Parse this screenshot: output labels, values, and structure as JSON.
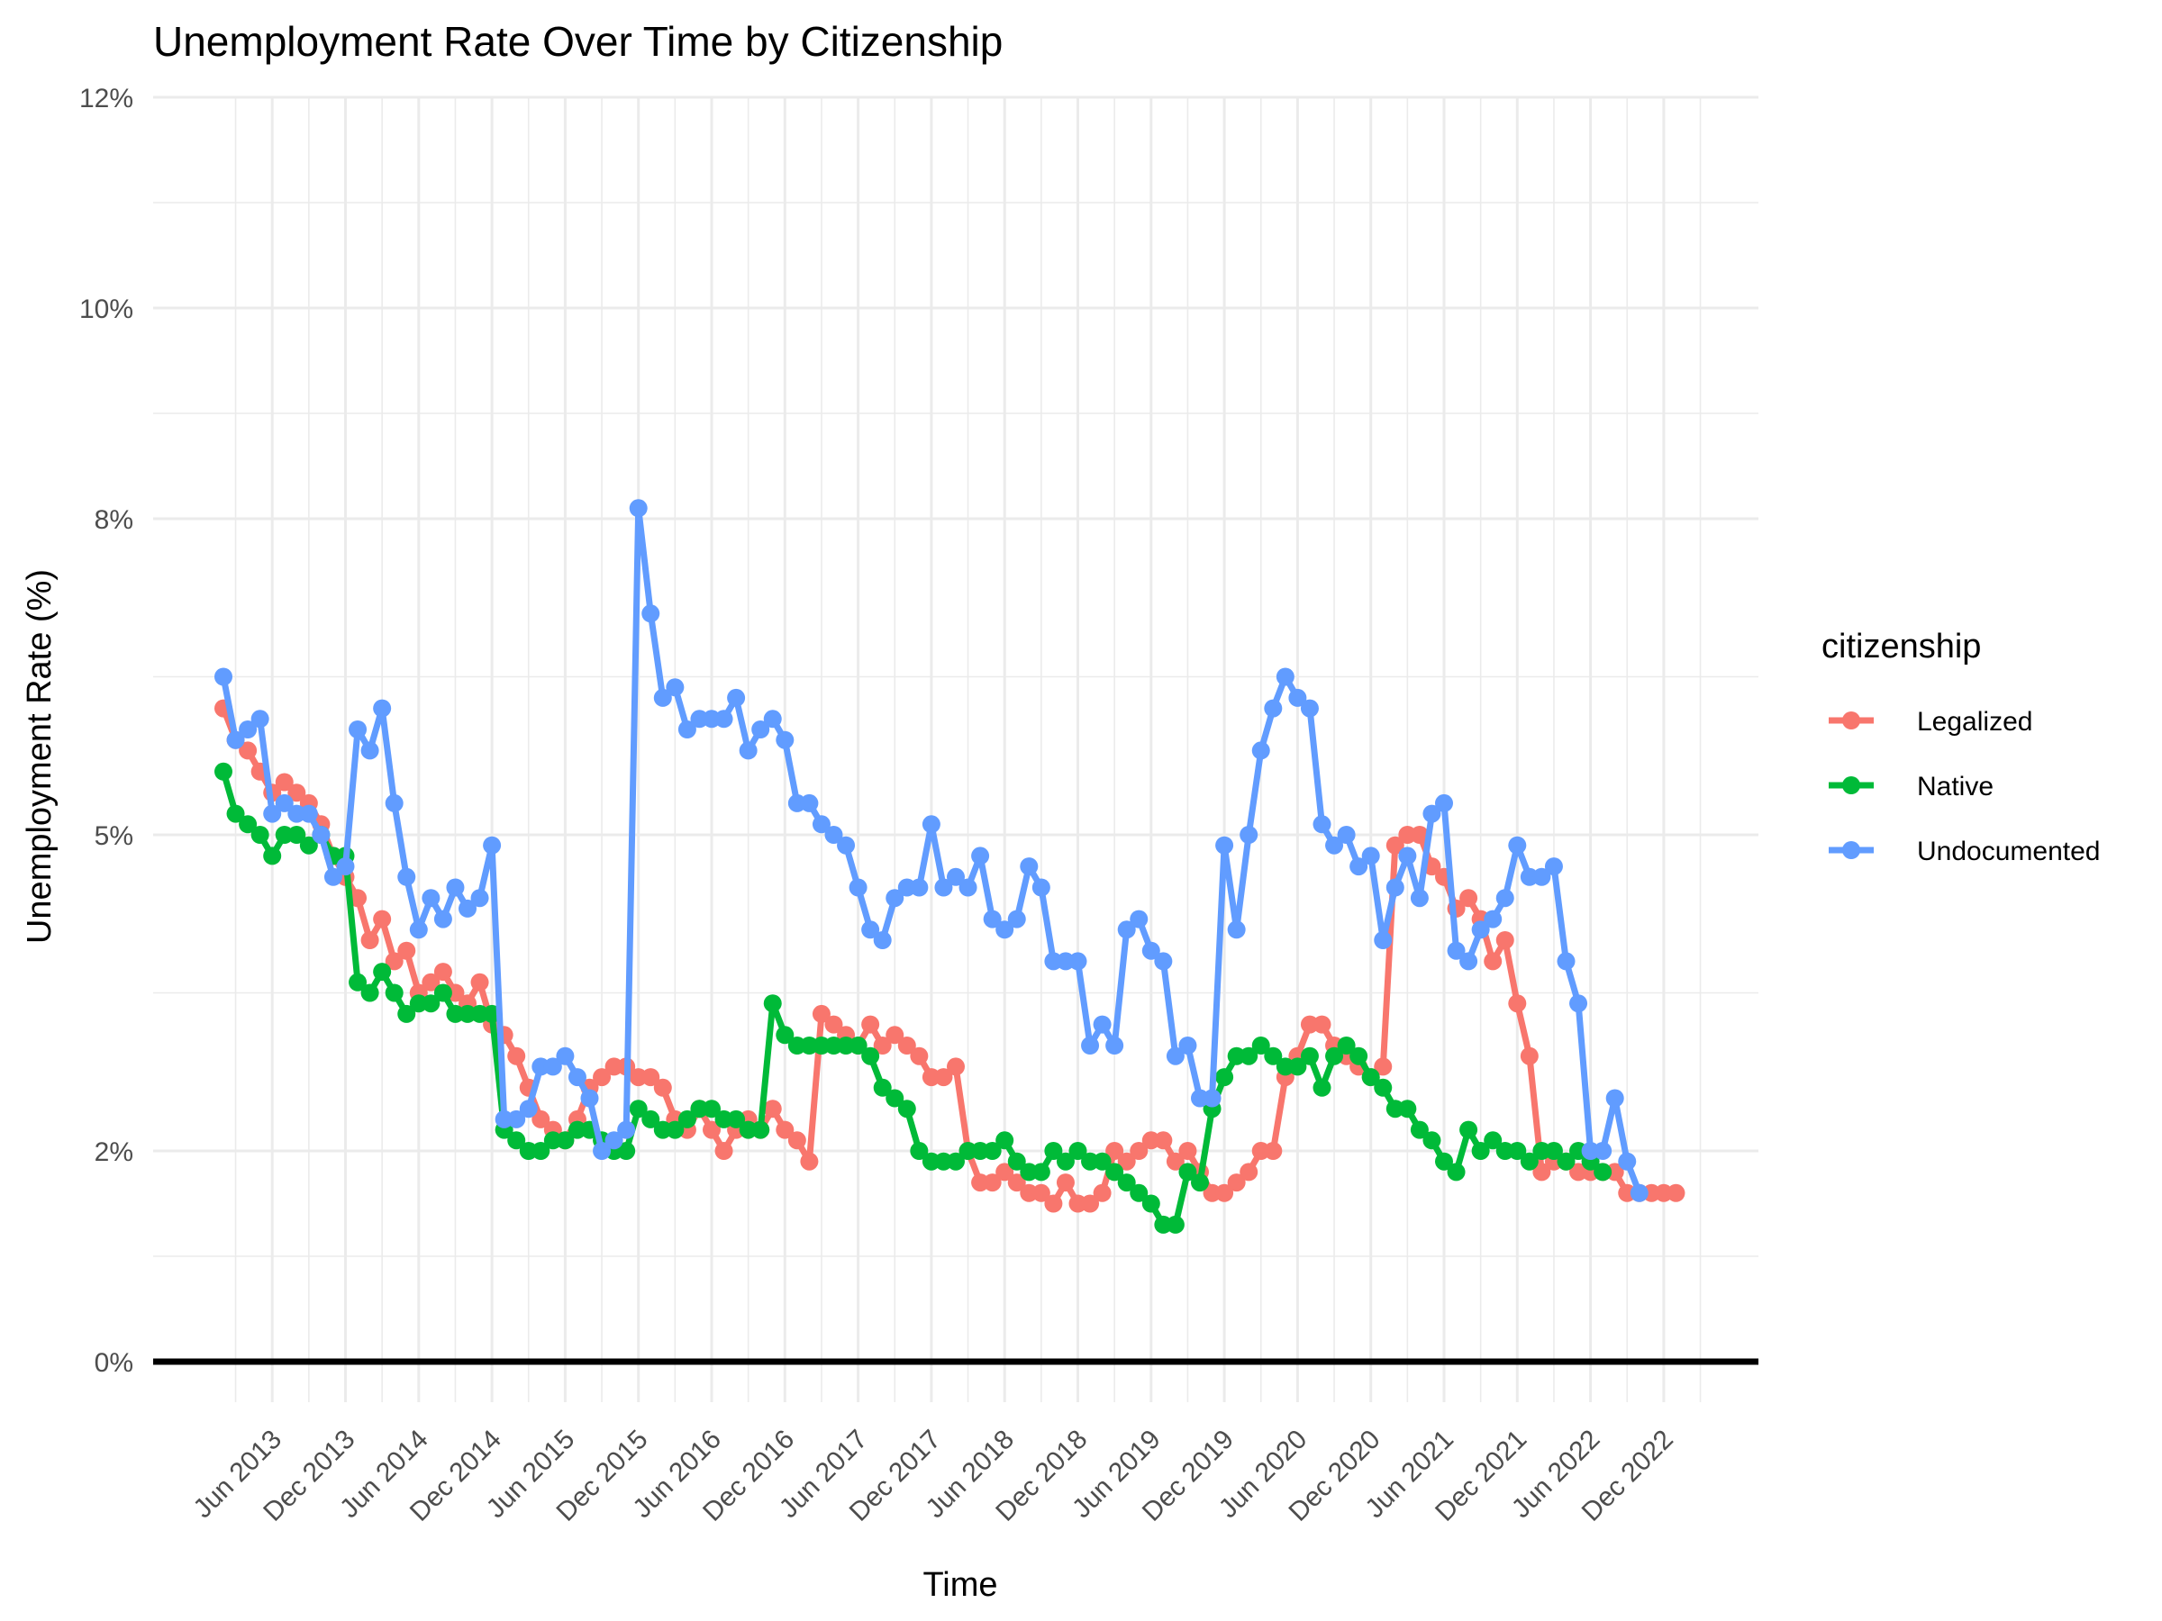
{
  "chart_data": {
    "type": "line",
    "title": "Unemployment Rate Over Time by Citizenship",
    "xlabel": "Time",
    "ylabel": "Unemployment Rate (%)",
    "ylim": [
      0,
      12
    ],
    "y_ticks": [
      "0%",
      "2%",
      "5%",
      "8%",
      "10%",
      "12%"
    ],
    "y_tick_values": [
      0,
      2.0,
      5.0,
      8.0,
      10.0,
      12.0
    ],
    "x_start": "Feb 2013",
    "x_ticks": [
      "Jun 2013",
      "Dec 2013",
      "Jun 2014",
      "Dec 2014",
      "Jun 2015",
      "Dec 2015",
      "Jun 2016",
      "Dec 2016",
      "Jun 2017",
      "Dec 2017",
      "Jun 2018",
      "Dec 2018",
      "Jun 2019",
      "Dec 2019",
      "Jun 2020",
      "Dec 2020",
      "Jun 2021",
      "Dec 2021",
      "Jun 2022",
      "Dec 2022"
    ],
    "grid": true,
    "zero_line": true,
    "legend": {
      "title": "citizenship",
      "position": "right"
    },
    "series": [
      {
        "name": "Legalized",
        "color": "#F8766D",
        "values": [
          6.2,
          5.9,
          5.8,
          5.6,
          5.4,
          5.5,
          5.4,
          5.3,
          5.1,
          4.8,
          4.6,
          4.4,
          4.0,
          4.2,
          3.8,
          3.9,
          3.5,
          3.6,
          3.7,
          3.5,
          3.4,
          3.6,
          3.2,
          3.1,
          2.9,
          2.6,
          2.3,
          2.2,
          2.1,
          2.3,
          2.6,
          2.7,
          2.8,
          2.8,
          2.7,
          2.7,
          2.6,
          2.3,
          2.2,
          2.4,
          2.2,
          2.0,
          2.2,
          2.3,
          2.2,
          2.4,
          2.2,
          2.1,
          1.9,
          3.3,
          3.2,
          3.1,
          3.0,
          3.2,
          3.0,
          3.1,
          3.0,
          2.9,
          2.7,
          2.7,
          2.8,
          2.0,
          1.7,
          1.7,
          1.8,
          1.7,
          1.6,
          1.6,
          1.5,
          1.7,
          1.5,
          1.5,
          1.6,
          2.0,
          1.9,
          2.0,
          2.1,
          2.1,
          1.9,
          2.0,
          1.8,
          1.6,
          1.6,
          1.7,
          1.8,
          2.0,
          2.0,
          2.7,
          2.9,
          3.2,
          3.2,
          3.0,
          2.9,
          2.8,
          2.7,
          2.8,
          4.9,
          5.0,
          5.0,
          4.7,
          4.6,
          4.3,
          4.4,
          4.2,
          3.8,
          4.0,
          3.4,
          2.9,
          1.8,
          1.9,
          1.9,
          1.8,
          1.8,
          1.8,
          1.8,
          1.6,
          1.6,
          1.6,
          1.6,
          1.6
        ]
      },
      {
        "name": "Native",
        "color": "#00BA38",
        "values": [
          5.6,
          5.2,
          5.1,
          5.0,
          4.8,
          5.0,
          5.0,
          4.9,
          5.0,
          4.8,
          4.8,
          3.6,
          3.5,
          3.7,
          3.5,
          3.3,
          3.4,
          3.4,
          3.5,
          3.3,
          3.3,
          3.3,
          3.3,
          2.2,
          2.1,
          2.0,
          2.0,
          2.1,
          2.1,
          2.2,
          2.2,
          2.1,
          2.0,
          2.0,
          2.4,
          2.3,
          2.2,
          2.2,
          2.3,
          2.4,
          2.4,
          2.3,
          2.3,
          2.2,
          2.2,
          3.4,
          3.1,
          3.0,
          3.0,
          3.0,
          3.0,
          3.0,
          3.0,
          2.9,
          2.6,
          2.5,
          2.4,
          2.0,
          1.9,
          1.9,
          1.9,
          2.0,
          2.0,
          2.0,
          2.1,
          1.9,
          1.8,
          1.8,
          2.0,
          1.9,
          2.0,
          1.9,
          1.9,
          1.8,
          1.7,
          1.6,
          1.5,
          1.3,
          1.3,
          1.8,
          1.7,
          2.4,
          2.7,
          2.9,
          2.9,
          3.0,
          2.9,
          2.8,
          2.8,
          2.9,
          2.6,
          2.9,
          3.0,
          2.9,
          2.7,
          2.6,
          2.4,
          2.4,
          2.2,
          2.1,
          1.9,
          1.8,
          2.2,
          2.0,
          2.1,
          2.0,
          2.0,
          1.9,
          2.0,
          2.0,
          1.9,
          2.0,
          1.9,
          1.8
        ]
      },
      {
        "name": "Undocumented",
        "color": "#619CFF",
        "values": [
          6.5,
          5.9,
          6.0,
          6.1,
          5.2,
          5.3,
          5.2,
          5.2,
          5.0,
          4.6,
          4.7,
          6.0,
          5.8,
          6.2,
          5.3,
          4.6,
          4.1,
          4.4,
          4.2,
          4.5,
          4.3,
          4.4,
          4.9,
          2.3,
          2.3,
          2.4,
          2.8,
          2.8,
          2.9,
          2.7,
          2.5,
          2.0,
          2.1,
          2.2,
          8.1,
          7.1,
          6.3,
          6.4,
          6.0,
          6.1,
          6.1,
          6.1,
          6.3,
          5.8,
          6.0,
          6.1,
          5.9,
          5.3,
          5.3,
          5.1,
          5.0,
          4.9,
          4.5,
          4.1,
          4.0,
          4.4,
          4.5,
          4.5,
          5.1,
          4.5,
          4.6,
          4.5,
          4.8,
          4.2,
          4.1,
          4.2,
          4.7,
          4.5,
          3.8,
          3.8,
          3.8,
          3.0,
          3.2,
          3.0,
          4.1,
          4.2,
          3.9,
          3.8,
          2.9,
          3.0,
          2.5,
          2.5,
          4.9,
          4.1,
          5.0,
          5.8,
          6.2,
          6.5,
          6.3,
          6.2,
          5.1,
          4.9,
          5.0,
          4.7,
          4.8,
          4.0,
          4.5,
          4.8,
          4.4,
          5.2,
          5.3,
          3.9,
          3.8,
          4.1,
          4.2,
          4.4,
          4.9,
          4.6,
          4.6,
          4.7,
          3.8,
          3.4,
          2.0,
          2.0,
          2.5,
          1.9,
          1.6
        ]
      }
    ]
  }
}
